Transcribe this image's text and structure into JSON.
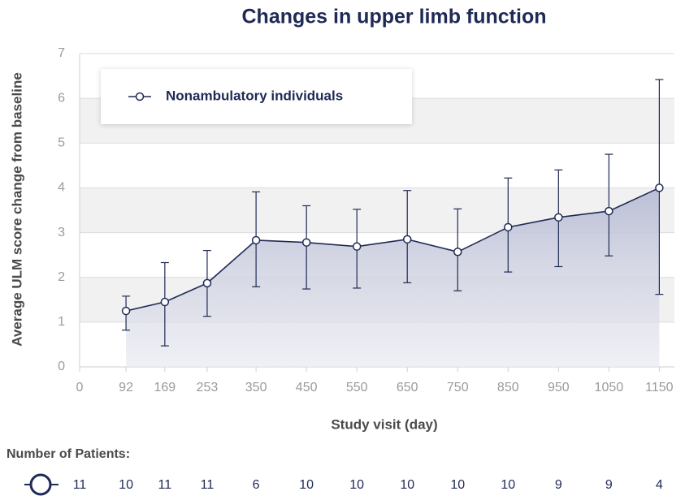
{
  "chart_data": {
    "type": "line",
    "title": "Changes in upper limb function",
    "x_label": "Study visit (day)",
    "y_label": "Average ULM score change from baseline",
    "x": [
      92,
      169,
      253,
      350,
      450,
      550,
      650,
      750,
      850,
      950,
      1050,
      1150
    ],
    "series": [
      {
        "name": "Nonambulatory individuals",
        "color": "#1f2a55",
        "values": [
          1.25,
          1.45,
          1.87,
          2.83,
          2.78,
          2.69,
          2.85,
          2.57,
          3.12,
          3.34,
          3.48,
          4.0
        ],
        "lower": [
          0.82,
          0.47,
          1.13,
          1.79,
          1.74,
          1.76,
          1.88,
          1.7,
          2.12,
          2.24,
          2.48,
          1.62
        ],
        "upper": [
          1.58,
          2.33,
          2.6,
          3.91,
          3.6,
          3.52,
          3.94,
          3.53,
          4.22,
          4.4,
          4.75,
          6.42
        ]
      }
    ],
    "xlim": [
      0,
      1180
    ],
    "xticks": [
      0,
      92,
      169,
      253,
      350,
      450,
      550,
      650,
      750,
      850,
      950,
      1050,
      1150
    ],
    "ylim": [
      0,
      7
    ],
    "yticks": [
      0,
      1,
      2,
      3,
      4,
      5,
      6,
      7
    ],
    "grid": true,
    "legend": "upper left",
    "patients": {
      "label": "Number of Patients:",
      "counts": [
        11,
        10,
        11,
        11,
        6,
        10,
        10,
        10,
        10,
        10,
        9,
        9,
        4
      ]
    }
  }
}
